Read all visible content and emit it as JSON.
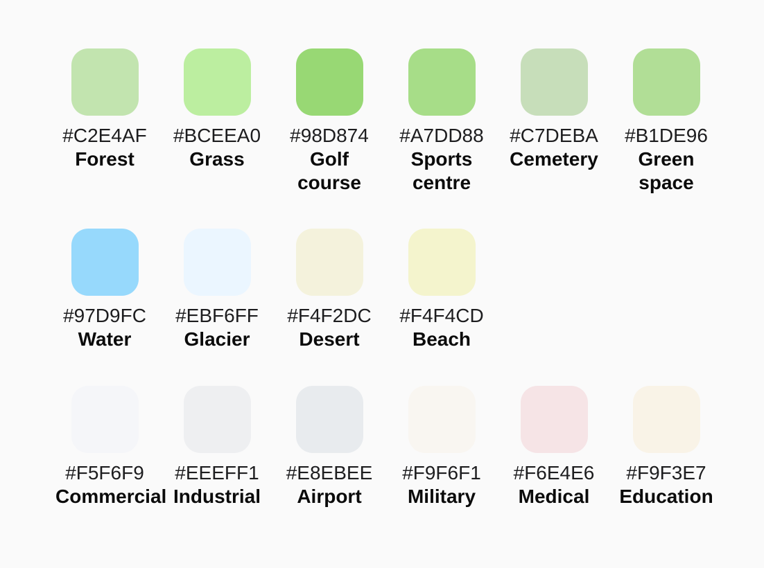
{
  "page": {
    "background_color": "#FAFAFA",
    "hex_text_color": "#1d1d1f",
    "label_text_color": "#0b0b0b"
  },
  "palette": {
    "rows": [
      {
        "items": [
          {
            "hex": "#C2E4AF",
            "label": "Forest"
          },
          {
            "hex": "#BCEEA0",
            "label": "Grass"
          },
          {
            "hex": "#98D874",
            "label": "Golf course"
          },
          {
            "hex": "#A7DD88",
            "label": "Sports centre"
          },
          {
            "hex": "#C7DEBA",
            "label": "Cemetery"
          },
          {
            "hex": "#B1DE96",
            "label": "Green space"
          }
        ]
      },
      {
        "items": [
          {
            "hex": "#97D9FC",
            "label": "Water"
          },
          {
            "hex": "#EBF6FF",
            "label": "Glacier"
          },
          {
            "hex": "#F4F2DC",
            "label": "Desert"
          },
          {
            "hex": "#F4F4CD",
            "label": "Beach"
          }
        ]
      },
      {
        "items": [
          {
            "hex": "#F5F6F9",
            "label": "Commercial"
          },
          {
            "hex": "#EEEFF1",
            "label": "Industrial"
          },
          {
            "hex": "#E8EBEE",
            "label": "Airport"
          },
          {
            "hex": "#F9F6F1",
            "label": "Military"
          },
          {
            "hex": "#F6E4E6",
            "label": "Medical"
          },
          {
            "hex": "#F9F3E7",
            "label": "Education"
          }
        ]
      }
    ]
  }
}
